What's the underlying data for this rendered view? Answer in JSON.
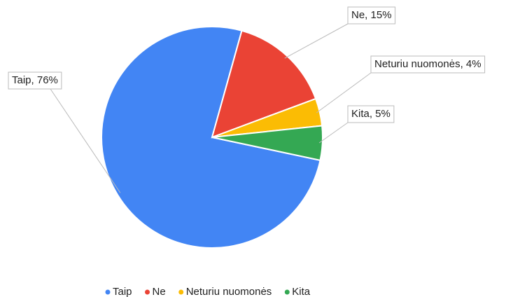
{
  "chart_data": {
    "type": "pie",
    "categories": [
      "Taip",
      "Ne",
      "Neturiu nuomonės",
      "Kita"
    ],
    "values": [
      76,
      15,
      4,
      5
    ],
    "value_labels": [
      "Taip, 76%",
      "Ne, 15%",
      "Neturiu nuomonės, 4%",
      "Kita, 5%"
    ],
    "colors": [
      "#4285f4",
      "#ea4335",
      "#fbbc04",
      "#34a853"
    ],
    "legend": "bottom"
  }
}
